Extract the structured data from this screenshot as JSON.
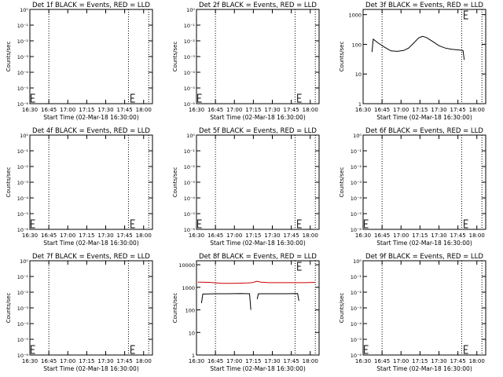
{
  "chart_data": [
    {
      "type": "line",
      "title": "Det 1f BLACK = Events, RED = LLD",
      "xlabel": "Start Time (02-Mar-18 16:30:00)",
      "ylabel": "Counts/sec",
      "y_tick_labels": [
        "10⁻⁶",
        "10⁻⁵",
        "10⁻⁴",
        "10⁻³",
        "10⁻²",
        "10⁻¹",
        "10⁰"
      ],
      "x_tick_labels": [
        "16:30",
        "16:45",
        "17:00",
        "17:15",
        "17:30",
        "17:45",
        "18:00"
      ],
      "ylim": [
        1e-06,
        1
      ],
      "xlim": [
        "16:30",
        "18:07"
      ],
      "vlines": [
        "16:45",
        "17:48",
        "18:04"
      ],
      "markers": [
        "16:31",
        "17:50"
      ],
      "series": []
    },
    {
      "type": "line",
      "title": "Det 2f BLACK = Events, RED = LLD",
      "xlabel": "Start Time (02-Mar-18 16:30:00)",
      "ylabel": "Counts/sec",
      "y_tick_labels": [
        "10⁻⁶",
        "10⁻⁵",
        "10⁻⁴",
        "10⁻³",
        "10⁻²",
        "10⁻¹",
        "10⁰"
      ],
      "x_tick_labels": [
        "16:30",
        "16:45",
        "17:00",
        "17:15",
        "17:30",
        "17:45",
        "18:00"
      ],
      "ylim": [
        1e-06,
        1
      ],
      "xlim": [
        "16:30",
        "18:07"
      ],
      "vlines": [
        "16:45",
        "17:48",
        "18:04"
      ],
      "markers": [
        "16:31",
        "17:50"
      ],
      "series": []
    },
    {
      "type": "line",
      "title": "Det 3f BLACK = Events, RED = LLD",
      "xlabel": "Start Time (02-Mar-18 16:30:00)",
      "ylabel": "Counts/sec",
      "y_tick_labels": [
        "1000",
        "100",
        "10",
        "1"
      ],
      "x_tick_labels": [
        "16:30",
        "16:45",
        "17:00",
        "17:15",
        "17:30",
        "17:45",
        "18:00"
      ],
      "ylim": [
        1,
        1500
      ],
      "xlim": [
        "16:30",
        "18:07"
      ],
      "vlines": [
        "16:45",
        "17:48",
        "18:04"
      ],
      "markers": [
        "17:50"
      ],
      "series": [
        {
          "color": "#000000",
          "points": [
            [
              "16:37",
              55
            ],
            [
              "16:38",
              150
            ],
            [
              "16:42",
              110
            ],
            [
              "16:47",
              80
            ],
            [
              "16:52",
              60
            ],
            [
              "16:57",
              58
            ],
            [
              "17:02",
              62
            ],
            [
              "17:06",
              75
            ],
            [
              "17:10",
              110
            ],
            [
              "17:14",
              165
            ],
            [
              "17:17",
              185
            ],
            [
              "17:20",
              170
            ],
            [
              "17:25",
              125
            ],
            [
              "17:30",
              90
            ],
            [
              "17:35",
              75
            ],
            [
              "17:40",
              68
            ],
            [
              "17:45",
              65
            ],
            [
              "17:49",
              62
            ],
            [
              "17:50",
              30
            ]
          ]
        }
      ]
    },
    {
      "type": "line",
      "title": "Det 4f BLACK = Events, RED = LLD",
      "xlabel": "Start Time (02-Mar-18 16:30:00)",
      "ylabel": "Counts/sec",
      "y_tick_labels": [
        "10⁻⁶",
        "10⁻⁵",
        "10⁻⁴",
        "10⁻³",
        "10⁻²",
        "10⁻¹",
        "10⁰"
      ],
      "x_tick_labels": [
        "16:30",
        "16:45",
        "17:00",
        "17:15",
        "17:30",
        "17:45",
        "18:00"
      ],
      "ylim": [
        1e-06,
        1
      ],
      "xlim": [
        "16:30",
        "18:07"
      ],
      "vlines": [
        "16:45",
        "17:48",
        "18:04"
      ],
      "markers": [
        "16:31",
        "17:50"
      ],
      "series": []
    },
    {
      "type": "line",
      "title": "Det 5f BLACK = Events, RED = LLD",
      "xlabel": "Start Time (02-Mar-18 16:30:00)",
      "ylabel": "Counts/sec",
      "y_tick_labels": [
        "10⁻⁶",
        "10⁻⁵",
        "10⁻⁴",
        "10⁻³",
        "10⁻²",
        "10⁻¹",
        "10⁰"
      ],
      "x_tick_labels": [
        "16:30",
        "16:45",
        "17:00",
        "17:15",
        "17:30",
        "17:45",
        "18:00"
      ],
      "ylim": [
        1e-06,
        1
      ],
      "xlim": [
        "16:30",
        "18:07"
      ],
      "vlines": [
        "16:45",
        "17:48",
        "18:04"
      ],
      "markers": [
        "16:31",
        "17:50"
      ],
      "series": []
    },
    {
      "type": "line",
      "title": "Det 6f BLACK = Events, RED = LLD",
      "xlabel": "Start Time (02-Mar-18 16:30:00)",
      "ylabel": "Counts/sec",
      "y_tick_labels": [
        "10⁻⁶",
        "10⁻⁵",
        "10⁻⁴",
        "10⁻³",
        "10⁻²",
        "10⁻¹",
        "10⁰"
      ],
      "x_tick_labels": [
        "16:30",
        "16:45",
        "17:00",
        "17:15",
        "17:30",
        "17:45",
        "18:00"
      ],
      "ylim": [
        1e-06,
        1
      ],
      "xlim": [
        "16:30",
        "18:07"
      ],
      "vlines": [
        "16:45",
        "17:48",
        "18:04"
      ],
      "markers": [
        "16:31",
        "17:50"
      ],
      "series": []
    },
    {
      "type": "line",
      "title": "Det 7f BLACK = Events, RED = LLD",
      "xlabel": "Start Time (02-Mar-18 16:30:00)",
      "ylabel": "Counts/sec",
      "y_tick_labels": [
        "10⁻⁶",
        "10⁻⁵",
        "10⁻⁴",
        "10⁻³",
        "10⁻²",
        "10⁻¹",
        "10⁰"
      ],
      "x_tick_labels": [
        "16:30",
        "16:45",
        "17:00",
        "17:15",
        "17:30",
        "17:45",
        "18:00"
      ],
      "ylim": [
        1e-06,
        1
      ],
      "xlim": [
        "16:30",
        "18:07"
      ],
      "vlines": [
        "16:45",
        "17:48",
        "18:04"
      ],
      "markers": [
        "16:31",
        "17:50"
      ],
      "series": []
    },
    {
      "type": "line",
      "title": "Det 8f BLACK = Events, RED = LLD",
      "xlabel": "Start Time (02-Mar-18 16:30:00)",
      "ylabel": "Counts/sec",
      "y_tick_labels": [
        "10000",
        "1000",
        "100",
        "10",
        "1"
      ],
      "x_tick_labels": [
        "16:30",
        "16:45",
        "17:00",
        "17:15",
        "17:30",
        "17:45",
        "18:00"
      ],
      "ylim": [
        1,
        15000
      ],
      "xlim": [
        "16:30",
        "18:07"
      ],
      "vlines": [
        "16:45",
        "17:48",
        "18:04"
      ],
      "markers": [
        "17:50"
      ],
      "series": [
        {
          "color": "#cc0000",
          "points": [
            [
              "16:31",
              1700
            ],
            [
              "16:40",
              1650
            ],
            [
              "16:50",
              1500
            ],
            [
              "17:00",
              1500
            ],
            [
              "17:10",
              1550
            ],
            [
              "17:14",
              1600
            ],
            [
              "17:18",
              1850
            ],
            [
              "17:21",
              1700
            ],
            [
              "17:27",
              1600
            ],
            [
              "17:35",
              1600
            ],
            [
              "17:45",
              1600
            ],
            [
              "17:55",
              1600
            ],
            [
              "18:04",
              1650
            ]
          ]
        },
        {
          "color": "#000000",
          "points": [
            [
              "16:34",
              200
            ],
            [
              "16:35",
              500
            ],
            [
              "16:45",
              520
            ],
            [
              "16:55",
              520
            ],
            [
              "17:05",
              530
            ],
            [
              "17:12",
              520
            ],
            [
              "17:13",
              100
            ]
          ]
        },
        {
          "color": "#000000",
          "points": [
            [
              "17:18",
              300
            ],
            [
              "17:19",
              520
            ],
            [
              "17:30",
              520
            ],
            [
              "17:40",
              520
            ],
            [
              "17:50",
              530
            ],
            [
              "17:51",
              250
            ]
          ]
        }
      ]
    },
    {
      "type": "line",
      "title": "Det 9f BLACK = Events, RED = LLD",
      "xlabel": "Start Time (02-Mar-18 16:30:00)",
      "ylabel": "Counts/sec",
      "y_tick_labels": [
        "10⁻⁶",
        "10⁻⁵",
        "10⁻⁴",
        "10⁻³",
        "10⁻²",
        "10⁻¹",
        "10⁰"
      ],
      "x_tick_labels": [
        "16:30",
        "16:45",
        "17:00",
        "17:15",
        "17:30",
        "17:45",
        "18:00"
      ],
      "ylim": [
        1e-06,
        1
      ],
      "xlim": [
        "16:30",
        "18:07"
      ],
      "vlines": [
        "16:45",
        "17:48",
        "18:04"
      ],
      "markers": [
        "16:31",
        "17:50"
      ],
      "series": []
    }
  ]
}
